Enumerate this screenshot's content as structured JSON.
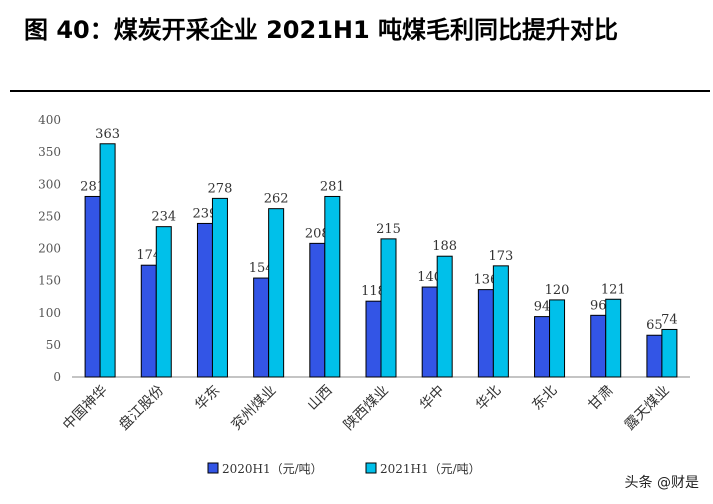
{
  "figure": {
    "title": "图 40：煤炭开采企业 2021H1 吨煤毛利同比提升对比",
    "watermark": "头条 @财是"
  },
  "chart_data": {
    "type": "bar",
    "categories": [
      "中国神华",
      "盘江股份",
      "华东",
      "兖州煤业",
      "山西",
      "陕西煤业",
      "华中",
      "华北",
      "东北",
      "甘肃",
      "露天煤业"
    ],
    "series": [
      {
        "name": "2020H1（元/吨）",
        "color": "#3355e6",
        "values": [
          281,
          174,
          239,
          154,
          208,
          118,
          140,
          136,
          94,
          96,
          65
        ]
      },
      {
        "name": "2021H1（元/吨）",
        "color": "#00c0ea",
        "values": [
          363,
          234,
          278,
          262,
          281,
          215,
          188,
          173,
          120,
          121,
          74
        ]
      }
    ],
    "ylim": [
      0,
      400
    ],
    "yticks": [
      0,
      50,
      100,
      150,
      200,
      250,
      300,
      350,
      400
    ],
    "xlabel": "",
    "ylabel": "",
    "legend_position": "bottom",
    "grid": false
  }
}
